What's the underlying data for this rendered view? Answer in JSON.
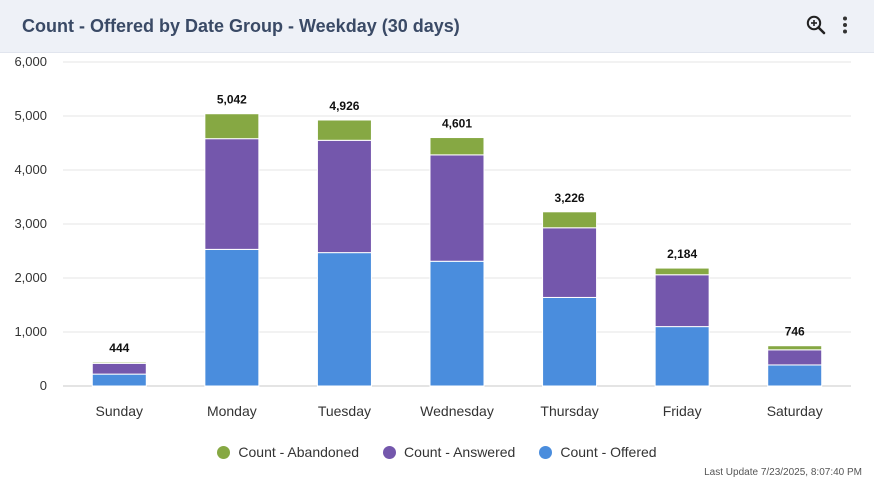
{
  "header": {
    "title": "Count - Offered by Date Group - Weekday (30 days)",
    "zoom_icon": "zoom-in-icon",
    "more_icon": "vertical-ellipsis-icon"
  },
  "colors": {
    "abandoned": "#86a843",
    "answered": "#7457ac",
    "offered": "#4a8ddd",
    "header_bg": "#eef1f7",
    "title": "#3a4a66"
  },
  "chart_data": {
    "type": "bar",
    "stacked": true,
    "categories": [
      "Sunday",
      "Monday",
      "Tuesday",
      "Wednesday",
      "Thursday",
      "Friday",
      "Saturday"
    ],
    "series": [
      {
        "name": "Count - Offered",
        "values": [
          220,
          2530,
          2470,
          2310,
          1640,
          1100,
          390
        ]
      },
      {
        "name": "Count - Answered",
        "values": [
          200,
          2050,
          2080,
          1970,
          1290,
          960,
          280
        ]
      },
      {
        "name": "Count - Abandoned",
        "values": [
          24,
          462,
          376,
          321,
          296,
          124,
          76
        ]
      }
    ],
    "totals": [
      "444",
      "5,042",
      "4,926",
      "4,601",
      "3,226",
      "2,184",
      "746"
    ],
    "yticks": [
      "0",
      "1,000",
      "2,000",
      "3,000",
      "4,000",
      "5,000",
      "6,000"
    ],
    "ylim": [
      0,
      6000
    ],
    "grid": true,
    "legend_position": "bottom",
    "legend": [
      "Count - Abandoned",
      "Count - Answered",
      "Count - Offered"
    ]
  },
  "footer": {
    "last_update": "Last Update 7/23/2025, 8:07:40 PM"
  }
}
